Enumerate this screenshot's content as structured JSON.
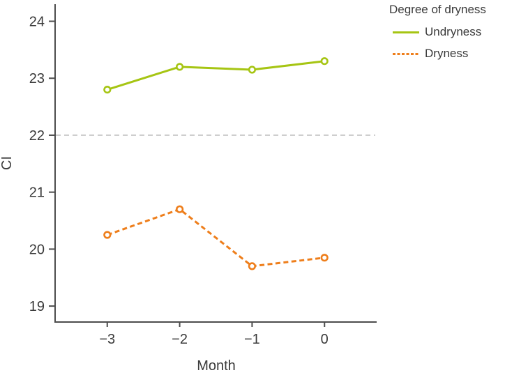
{
  "chart_data": {
    "type": "line",
    "title": "",
    "xlabel": "Month",
    "ylabel": "CI",
    "x": [
      -3,
      -2,
      -1,
      0
    ],
    "series": [
      {
        "name": "Undryness",
        "values": [
          22.8,
          23.2,
          23.15,
          23.3
        ],
        "color": "#a6c513",
        "line_style": "solid",
        "marker": "open-circle"
      },
      {
        "name": "Dryness",
        "values": [
          20.25,
          20.7,
          19.7,
          19.85
        ],
        "color": "#ee7e1b",
        "line_style": "dashed",
        "marker": "open-circle"
      }
    ],
    "reference_line": {
      "y": 22,
      "color": "#bfbfbf",
      "style": "dashed"
    },
    "xticks": [
      {
        "v": -3,
        "label": "−3"
      },
      {
        "v": -2,
        "label": "−2"
      },
      {
        "v": -1,
        "label": "−1"
      },
      {
        "v": 0,
        "label": "0"
      }
    ],
    "yticks": [
      {
        "v": 19,
        "label": "19"
      },
      {
        "v": 20,
        "label": "20"
      },
      {
        "v": 21,
        "label": "21"
      },
      {
        "v": 22,
        "label": "22"
      },
      {
        "v": 23,
        "label": "23"
      },
      {
        "v": 24,
        "label": "24"
      }
    ],
    "xlim": [
      -3.72,
      0.72
    ],
    "ylim": [
      18.72,
      24.3
    ],
    "grid": false,
    "legend": {
      "title": "Degree of dryness",
      "position": "top-right"
    },
    "axis_color": "#4d4d4d",
    "text_color": "#3a3a3a"
  }
}
